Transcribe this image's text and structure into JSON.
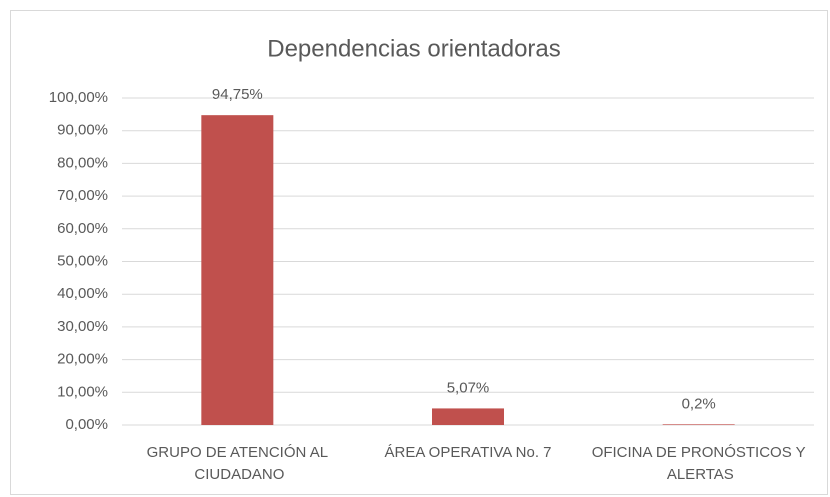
{
  "chart_data": {
    "type": "bar",
    "title": "Dependencias orientadoras",
    "categories": [
      "GRUPO DE ATENCIÓN AL CIUDADANO",
      "ÁREA OPERATIVA No. 7",
      "OFICINA DE PRONÓSTICOS Y ALERTAS"
    ],
    "values": [
      94.75,
      5.07,
      0.2
    ],
    "value_labels": [
      "94,75%",
      "5,07%",
      "0,2%"
    ],
    "color": "#c0504d",
    "ylim": [
      0,
      100
    ],
    "yticks": [
      {
        "value": 0,
        "label": "0,00%"
      },
      {
        "value": 10,
        "label": "10,00%"
      },
      {
        "value": 20,
        "label": "20,00%"
      },
      {
        "value": 30,
        "label": "30,00%"
      },
      {
        "value": 40,
        "label": "40,00%"
      },
      {
        "value": 50,
        "label": "50,00%"
      },
      {
        "value": 60,
        "label": "60,00%"
      },
      {
        "value": 70,
        "label": "70,00%"
      },
      {
        "value": 80,
        "label": "80,00%"
      },
      {
        "value": 90,
        "label": "90,00%"
      },
      {
        "value": 100,
        "label": "100,00%"
      }
    ],
    "grid": true
  }
}
